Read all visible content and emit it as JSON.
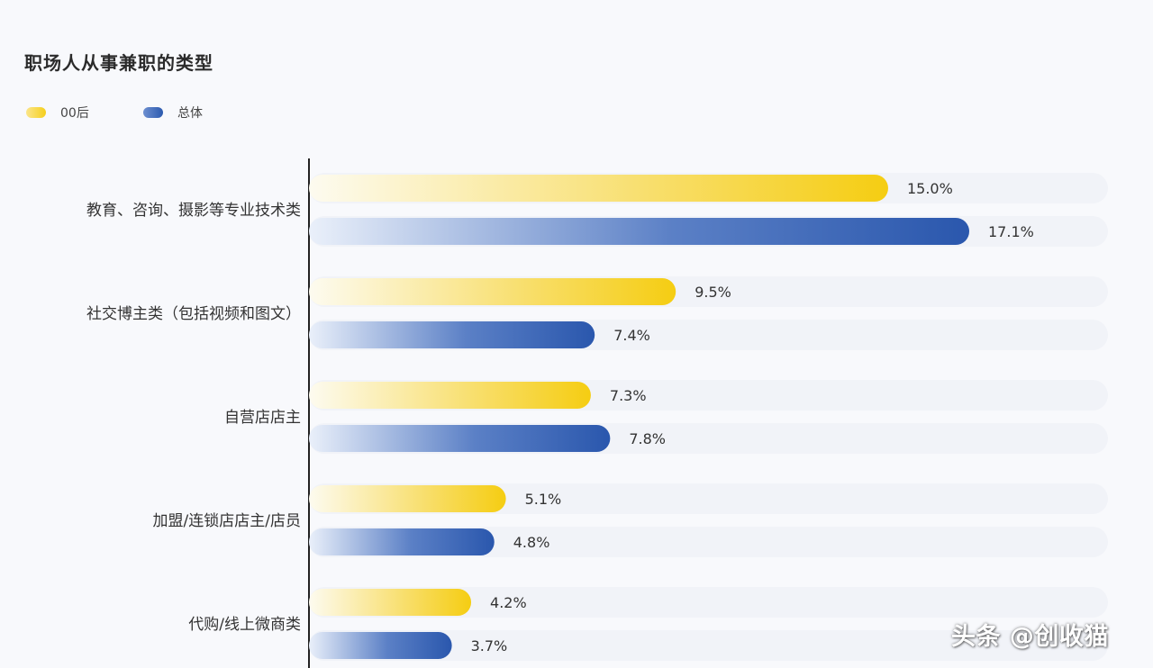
{
  "title": "职场人从事兼职的类型",
  "watermark": "头条 @创收猫",
  "legend": [
    {
      "label": "00后",
      "color": "#f5cf1c"
    },
    {
      "label": "总体",
      "color": "#2c5aaf"
    }
  ],
  "chart_data": {
    "type": "bar",
    "orientation": "horizontal",
    "title": "职场人从事兼职的类型",
    "categories": [
      "教育、咨询、摄影等专业技术类",
      "社交博主类（包括视频和图文）",
      "自营店店主",
      "加盟/连锁店店主/店员",
      "代购/线上微商类"
    ],
    "series": [
      {
        "name": "00后",
        "values": [
          15.0,
          9.5,
          7.3,
          5.1,
          4.2
        ],
        "labels": [
          "15.0%",
          "9.5%",
          "7.3%",
          "5.1%",
          "4.2%"
        ],
        "color": "#f5cf1c"
      },
      {
        "name": "总体",
        "values": [
          17.1,
          7.4,
          7.8,
          4.8,
          3.7
        ],
        "labels": [
          "17.1%",
          "7.4%",
          "7.8%",
          "4.8%",
          "3.7%"
        ],
        "color": "#2c5aaf"
      }
    ],
    "xlim": [
      0,
      17.1
    ],
    "legend_position": "top-left",
    "grid": false
  }
}
